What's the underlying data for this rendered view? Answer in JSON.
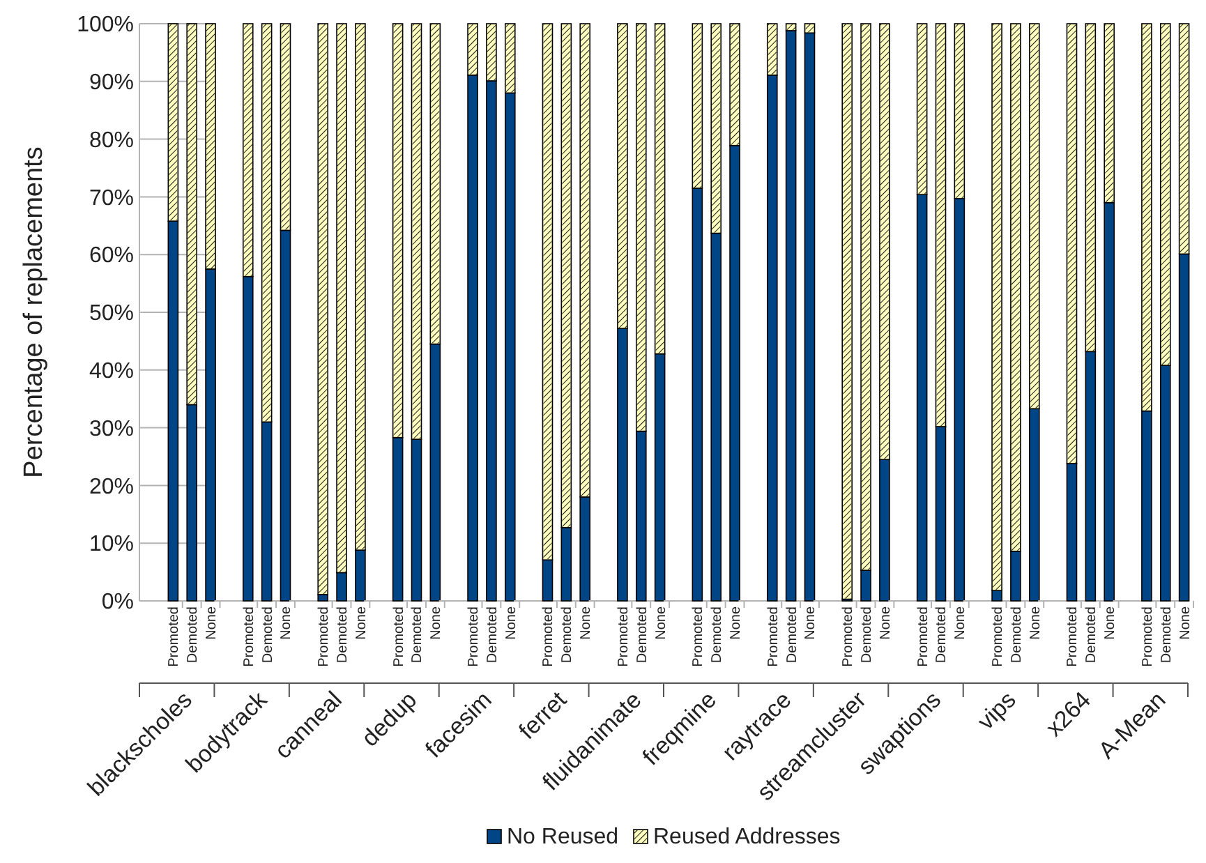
{
  "chart_data": [
    {
      "type": "bar",
      "stacked": true,
      "xlabel": "blackscholes",
      "ylabel": "Percentage of replacements",
      "categories": [
        "Promoted",
        "Demoted",
        "None"
      ],
      "ylim": [
        0,
        100
      ],
      "yticks": [
        {
          "value": 0,
          "label": "0%"
        },
        {
          "value": 10,
          "label": "10%"
        },
        {
          "value": 20,
          "label": "20%"
        },
        {
          "value": 30,
          "label": "30%"
        },
        {
          "value": 40,
          "label": "40%"
        },
        {
          "value": 50,
          "label": "50%"
        },
        {
          "value": 60,
          "label": "60%"
        },
        {
          "value": 70,
          "label": "70%"
        },
        {
          "value": 80,
          "label": "80%"
        },
        {
          "value": 90,
          "label": "90%"
        },
        {
          "value": 100,
          "label": "100%"
        }
      ],
      "grid": "y",
      "legend": "bottom",
      "series": [
        {
          "name": "No Reused",
          "color": "#004586",
          "values": [
            65.8,
            34.0,
            57.5
          ]
        },
        {
          "name": "Reused Addresses",
          "color": "#ffffc0",
          "values": [
            34.2,
            66.0,
            42.5
          ]
        }
      ]
    },
    {
      "type": "bar",
      "stacked": true,
      "xlabel": "bodytrack",
      "categories": [
        "Promoted",
        "Demoted",
        "None"
      ],
      "ylim": [
        0,
        100
      ],
      "tick_labels": "x",
      "grid": "y",
      "series": [
        {
          "color": "#004586",
          "values": [
            56.2,
            31.0,
            64.2
          ]
        },
        {
          "color": "#ffffc0",
          "values": [
            43.8,
            69.0,
            35.8
          ]
        }
      ]
    },
    {
      "type": "bar",
      "stacked": true,
      "xlabel": "canneal",
      "categories": [
        "Promoted",
        "Demoted",
        "None"
      ],
      "ylim": [
        0,
        100
      ],
      "tick_labels": "x",
      "grid": "y",
      "series": [
        {
          "color": "#004586",
          "values": [
            1.1,
            4.9,
            8.8
          ]
        },
        {
          "color": "#ffffc0",
          "values": [
            98.9,
            95.1,
            91.2
          ]
        }
      ]
    },
    {
      "type": "bar",
      "stacked": true,
      "xlabel": "dedup",
      "categories": [
        "Promoted",
        "Demoted",
        "None"
      ],
      "ylim": [
        0,
        100
      ],
      "tick_labels": "x",
      "grid": "y",
      "series": [
        {
          "color": "#004586",
          "values": [
            28.3,
            28.0,
            44.5
          ]
        },
        {
          "color": "#ffffc0",
          "values": [
            71.7,
            72.0,
            55.5
          ]
        }
      ]
    },
    {
      "type": "bar",
      "stacked": true,
      "xlabel": "facesim",
      "categories": [
        "Promoted",
        "Demoted",
        "None"
      ],
      "ylim": [
        0,
        100
      ],
      "tick_labels": "x",
      "grid": "y",
      "series": [
        {
          "color": "#004586",
          "values": [
            91.1,
            90.1,
            88.0
          ]
        },
        {
          "color": "#ffffc0",
          "values": [
            8.9,
            9.9,
            12.0
          ]
        }
      ]
    },
    {
      "type": "bar",
      "stacked": true,
      "xlabel": "ferret",
      "categories": [
        "Promoted",
        "Demoted",
        "None"
      ],
      "ylim": [
        0,
        100
      ],
      "tick_labels": "x",
      "grid": "y",
      "series": [
        {
          "color": "#004586",
          "values": [
            7.1,
            12.7,
            18.0
          ]
        },
        {
          "color": "#ffffc0",
          "values": [
            92.9,
            87.3,
            82.0
          ]
        }
      ]
    },
    {
      "type": "bar",
      "stacked": true,
      "xlabel": "fluidanimate",
      "categories": [
        "Promoted",
        "Demoted",
        "None"
      ],
      "ylim": [
        0,
        100
      ],
      "tick_labels": "x",
      "grid": "y",
      "series": [
        {
          "color": "#004586",
          "values": [
            47.2,
            29.4,
            42.8
          ]
        },
        {
          "color": "#ffffc0",
          "values": [
            52.8,
            70.6,
            57.2
          ]
        }
      ]
    },
    {
      "type": "bar",
      "stacked": true,
      "xlabel": "freqmine",
      "categories": [
        "Promoted",
        "Demoted",
        "None"
      ],
      "ylim": [
        0,
        100
      ],
      "tick_labels": "x",
      "grid": "y",
      "series": [
        {
          "color": "#004586",
          "values": [
            71.5,
            63.7,
            78.9
          ]
        },
        {
          "color": "#ffffc0",
          "values": [
            28.5,
            36.3,
            21.1
          ]
        }
      ]
    },
    {
      "type": "bar",
      "stacked": true,
      "xlabel": "raytrace",
      "categories": [
        "Promoted",
        "Demoted",
        "None"
      ],
      "ylim": [
        0,
        100
      ],
      "tick_labels": "x",
      "grid": "y",
      "series": [
        {
          "color": "#004586",
          "values": [
            91.1,
            98.8,
            98.4
          ]
        },
        {
          "color": "#ffffc0",
          "values": [
            8.9,
            1.2,
            1.6
          ]
        }
      ]
    },
    {
      "type": "bar",
      "stacked": true,
      "xlabel": "streamcluster",
      "categories": [
        "Promoted",
        "Demoted",
        "None"
      ],
      "ylim": [
        0,
        100
      ],
      "tick_labels": "x",
      "grid": "y",
      "series": [
        {
          "color": "#004586",
          "values": [
            0.3,
            5.3,
            24.5
          ]
        },
        {
          "color": "#ffffc0",
          "values": [
            99.7,
            94.7,
            75.5
          ]
        }
      ]
    },
    {
      "type": "bar",
      "stacked": true,
      "xlabel": "swaptions",
      "categories": [
        "Promoted",
        "Demoted",
        "None"
      ],
      "ylim": [
        0,
        100
      ],
      "tick_labels": "x",
      "grid": "y",
      "series": [
        {
          "color": "#004586",
          "values": [
            70.4,
            30.2,
            69.7
          ]
        },
        {
          "color": "#ffffc0",
          "values": [
            29.6,
            69.8,
            30.3
          ]
        }
      ]
    },
    {
      "type": "bar",
      "stacked": true,
      "xlabel": "vips",
      "categories": [
        "Promoted",
        "Demoted",
        "None"
      ],
      "ylim": [
        0,
        100
      ],
      "tick_labels": "x",
      "grid": "y",
      "series": [
        {
          "color": "#004586",
          "values": [
            1.8,
            8.6,
            33.3
          ]
        },
        {
          "color": "#ffffc0",
          "values": [
            98.2,
            91.4,
            66.7
          ]
        }
      ]
    },
    {
      "type": "bar",
      "stacked": true,
      "xlabel": "x264",
      "categories": [
        "Promoted",
        "Demoted",
        "None"
      ],
      "ylim": [
        0,
        100
      ],
      "tick_labels": "x",
      "grid": "y",
      "series": [
        {
          "color": "#004586",
          "values": [
            23.8,
            43.2,
            69.0
          ]
        },
        {
          "color": "#ffffc0",
          "values": [
            76.2,
            56.8,
            31.0
          ]
        }
      ]
    },
    {
      "type": "bar",
      "stacked": true,
      "xlabel": "A-Mean",
      "categories": [
        "Promoted",
        "Demoted",
        "None"
      ],
      "ylim": [
        0,
        100
      ],
      "tick_labels": "x",
      "grid": "y",
      "series": [
        {
          "color": "#004586",
          "values": [
            32.9,
            40.8,
            60.1
          ]
        },
        {
          "color": "#ffffc0",
          "values": [
            67.1,
            59.2,
            39.9
          ]
        }
      ]
    }
  ]
}
